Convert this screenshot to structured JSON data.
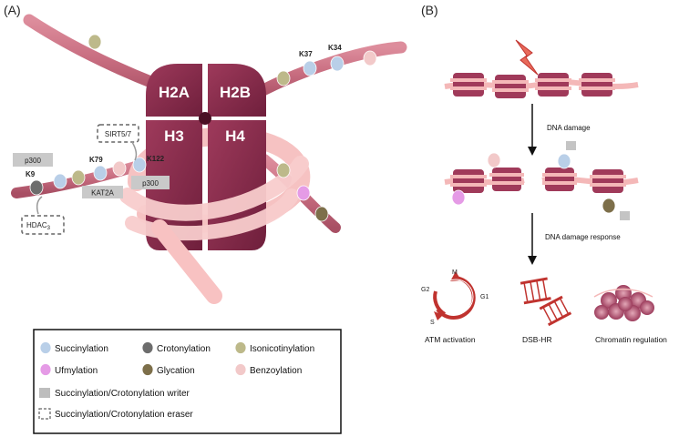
{
  "panels": {
    "a": "(A)",
    "b": "(B)"
  },
  "histones": [
    "H2A",
    "H2B",
    "H3",
    "H4"
  ],
  "sites": {
    "k37": "K37",
    "k34": "K34",
    "k9": "K9",
    "k79": "K79",
    "k122": "K122"
  },
  "enzymes": {
    "sirt": "SIRT5/7",
    "p300_left": "p300",
    "p300_right": "p300",
    "kat2a": "KAT2A",
    "hdac": "HDAC",
    "hdac_sub": "3"
  },
  "legend": {
    "succinylation": "Succinylation",
    "crotonylation": "Crotonylation",
    "isonicotinylation": "Isonicotinylation",
    "ufmylation": "Ufmylation",
    "glycation": "Glycation",
    "benzoylation": "Benzoylation",
    "writer": "Succinylation/Crotonylation   writer",
    "eraser": "Succinylation/Crotonylation   eraser"
  },
  "colors": {
    "succinylation": "#b9cfe8",
    "crotonylation": "#6d6d6d",
    "isonicotinylation": "#bdb98a",
    "ufmylation": "#e59be6",
    "glycation": "#7d6f4a",
    "benzoylation": "#f2c9c9",
    "histone": "#8b2a4b",
    "dna": "#f4b8b8",
    "tail": "#c86d80",
    "arrow_red": "#c0332f"
  },
  "flow": {
    "step1": "DNA damage",
    "step2": "DNA damage response"
  },
  "outcomes": {
    "atm": "ATM activation",
    "dsb": "DSB-HR",
    "chromatin": "Chromatin regulation"
  },
  "cycle": {
    "m": "M",
    "g1": "G1",
    "g2": "G2",
    "s": "S"
  }
}
